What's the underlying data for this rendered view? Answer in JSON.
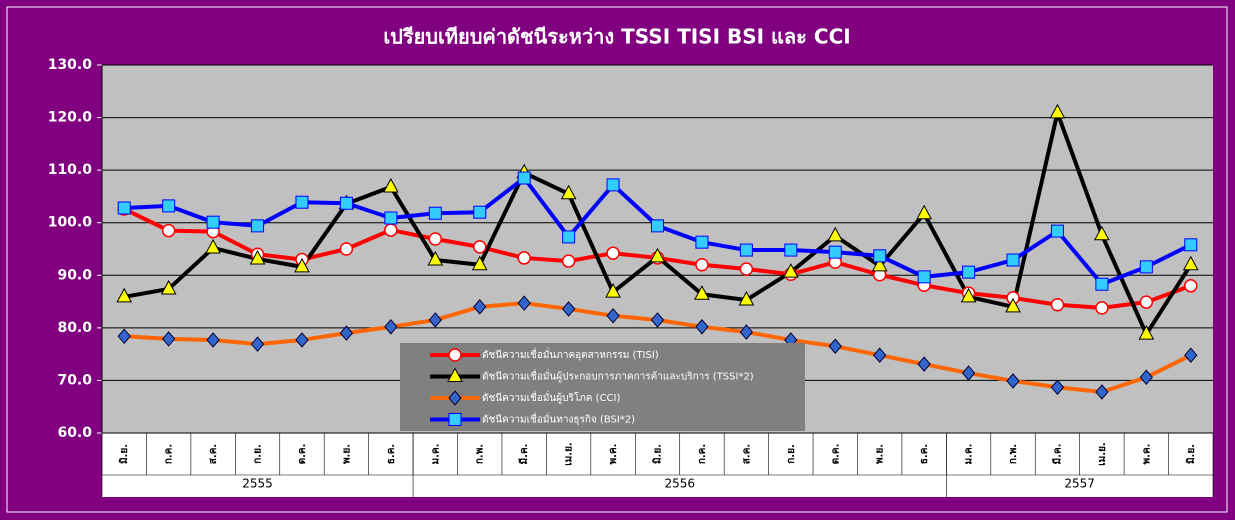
{
  "chart_data": {
    "type": "line",
    "title": "เปรียบเทียบค่าดัชนีระหว่าง TSSI TISI BSI และ CCI",
    "category_groups": [
      {
        "label": "2555",
        "categories": [
          "มิ.ย.",
          "ก.ค.",
          "ส.ค.",
          "ก.ย.",
          "ต.ค.",
          "พ.ย.",
          "ธ.ค."
        ]
      },
      {
        "label": "2556",
        "categories": [
          "ม.ค.",
          "ก.พ.",
          "มี.ค.",
          "เม.ย.",
          "พ.ค.",
          "มิ.ย.",
          "ก.ค.",
          "ส.ค.",
          "ก.ย.",
          "ต.ค.",
          "พ.ย.",
          "ธ.ค."
        ]
      },
      {
        "label": "2557",
        "categories": [
          "ม.ค.",
          "ก.พ.",
          "มี.ค.",
          "เม.ย.",
          "พ.ค.",
          "มิ.ย."
        ]
      }
    ],
    "ylim": [
      60,
      130
    ],
    "yticks": [
      {
        "value": 60,
        "label": "60.0"
      },
      {
        "value": 70,
        "label": "70.0"
      },
      {
        "value": 80,
        "label": "80.0"
      },
      {
        "value": 90,
        "label": "90.0"
      },
      {
        "value": 100,
        "label": "100.0"
      },
      {
        "value": 110,
        "label": "110.0"
      },
      {
        "value": 120,
        "label": "120.0"
      },
      {
        "value": 130,
        "label": "130.0"
      }
    ],
    "grid": true,
    "series": [
      {
        "name": "ดัชนีความเชื่อมั่นภาคอุตสาหกรรม (TISI)",
        "color": "#ff0000",
        "marker": "circle",
        "marker_color": "#ffffff",
        "values": [
          102.6,
          98.5,
          98.3,
          94,
          93,
          95,
          98.6,
          96.9,
          95.4,
          93.3,
          92.7,
          94.2,
          93.3,
          92,
          91.2,
          90.2,
          92.5,
          90.1,
          88.1,
          86.6,
          85.7,
          84.4,
          83.8,
          84.9,
          88
        ]
      },
      {
        "name": "ดัชนีความเชื่อมั่นผู้ประกอบการภาคการค้าและบริการ (TSSI*2)",
        "color": "#000000",
        "marker": "triangle",
        "marker_color": "#ffff00",
        "values": [
          85.9,
          87.4,
          95.2,
          93.1,
          91.6,
          103.6,
          106.8,
          92.9,
          92,
          109.5,
          105.5,
          86.8,
          93.5,
          86.4,
          85.3,
          90.6,
          97.5,
          91.8,
          101.7,
          85.9,
          84,
          120.9,
          97.7,
          78.8,
          92
        ]
      },
      {
        "name": "ดัชนีความเชื่อมั่นผู้บริโภค (CCI)",
        "color": "#ff6600",
        "marker": "diamond",
        "marker_color": "#3366cc",
        "values": [
          78.4,
          77.9,
          77.7,
          76.9,
          77.7,
          79,
          80.2,
          81.5,
          84,
          84.7,
          83.6,
          82.3,
          81.5,
          80.2,
          79.2,
          77.7,
          76.5,
          74.8,
          73.1,
          71.4,
          69.9,
          68.7,
          67.8,
          70.6,
          74.8
        ]
      },
      {
        "name": "ดัชนีความเชื่อมั่นทางธุรกิจ (BSI*2)",
        "color": "#0000ff",
        "marker": "square",
        "marker_color": "#33ccff",
        "values": [
          102.8,
          103.2,
          100.1,
          99.4,
          103.9,
          103.7,
          100.9,
          101.8,
          102,
          108.5,
          97.3,
          107.2,
          99.4,
          96.3,
          94.8,
          94.8,
          94.4,
          93.7,
          89.7,
          90.6,
          92.9,
          98.4,
          88.3,
          91.6,
          95.8
        ]
      }
    ]
  }
}
